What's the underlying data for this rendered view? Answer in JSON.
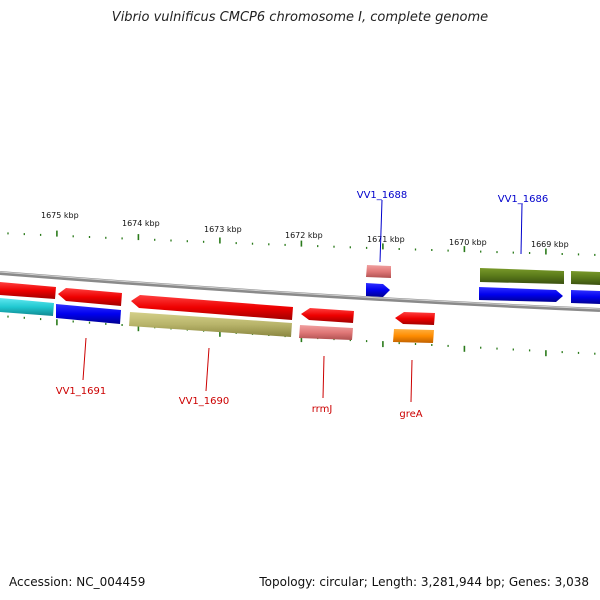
{
  "title": "Vibrio vulnificus CMCP6 chromosome I, complete genome",
  "footer": {
    "accession": "Accession: NC_004459",
    "stats": "Topology: circular; Length: 3,281,944 bp; Genes: 3,038"
  },
  "kbp_labels": [
    "1675 kbp",
    "1674 kbp",
    "1673 kbp",
    "1672 kbp",
    "1671 kbp",
    "1670 kbp",
    "1669 kbp"
  ],
  "gene_labels": [
    {
      "name": "VV1_1688",
      "color": "#0000cc"
    },
    {
      "name": "VV1_1686",
      "color": "#0000cc"
    },
    {
      "name": "VV1_1691",
      "color": "#cc0000"
    },
    {
      "name": "VV1_1690",
      "color": "#cc0000"
    },
    {
      "name": "rrmJ",
      "color": "#cc0000"
    },
    {
      "name": "greA",
      "color": "#cc0000"
    }
  ],
  "colors": {
    "red_feature": "#ee0000",
    "pink_feature": "#e88080",
    "blue_feature": "#0000ee",
    "olive_feature": "#5a7a1a",
    "khaki_feature": "#b8b46a",
    "cyan_feature": "#20c8d0",
    "orange_feature": "#ff8c00",
    "backbone": "#8a8a8a",
    "tick": "#2a7a1a"
  }
}
